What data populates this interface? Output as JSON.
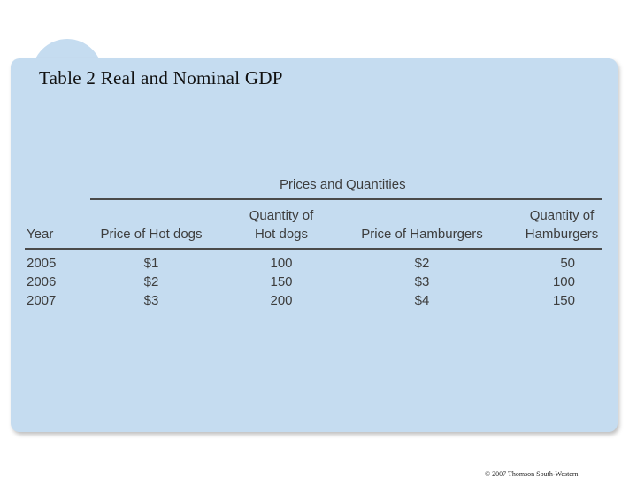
{
  "title": "Table 2 Real and Nominal GDP",
  "table": {
    "group_header": "Prices and Quantities",
    "headers": {
      "year": "Year",
      "price_hotdogs": "Price of Hot dogs",
      "qty_hotdogs_line1": "Quantity of",
      "qty_hotdogs_line2": "Hot dogs",
      "price_hamburgers": "Price of Hamburgers",
      "qty_hamburgers_line1": "Quantity of",
      "qty_hamburgers_line2": "Hamburgers"
    },
    "rows": [
      {
        "year": "2005",
        "price_hotdogs": "$1",
        "qty_hotdogs": "100",
        "price_hamburgers": "$2",
        "qty_hamburgers": "50"
      },
      {
        "year": "2006",
        "price_hotdogs": "$2",
        "qty_hotdogs": "150",
        "price_hamburgers": "$3",
        "qty_hamburgers": "100"
      },
      {
        "year": "2007",
        "price_hotdogs": "$3",
        "qty_hotdogs": "200",
        "price_hamburgers": "$4",
        "qty_hamburgers": "150"
      }
    ]
  },
  "credit": "© 2007 Thomson South-Western",
  "colors": {
    "panel": "#c5dcf0",
    "text": "#3d3d3d",
    "rule": "#4a4a4a"
  }
}
